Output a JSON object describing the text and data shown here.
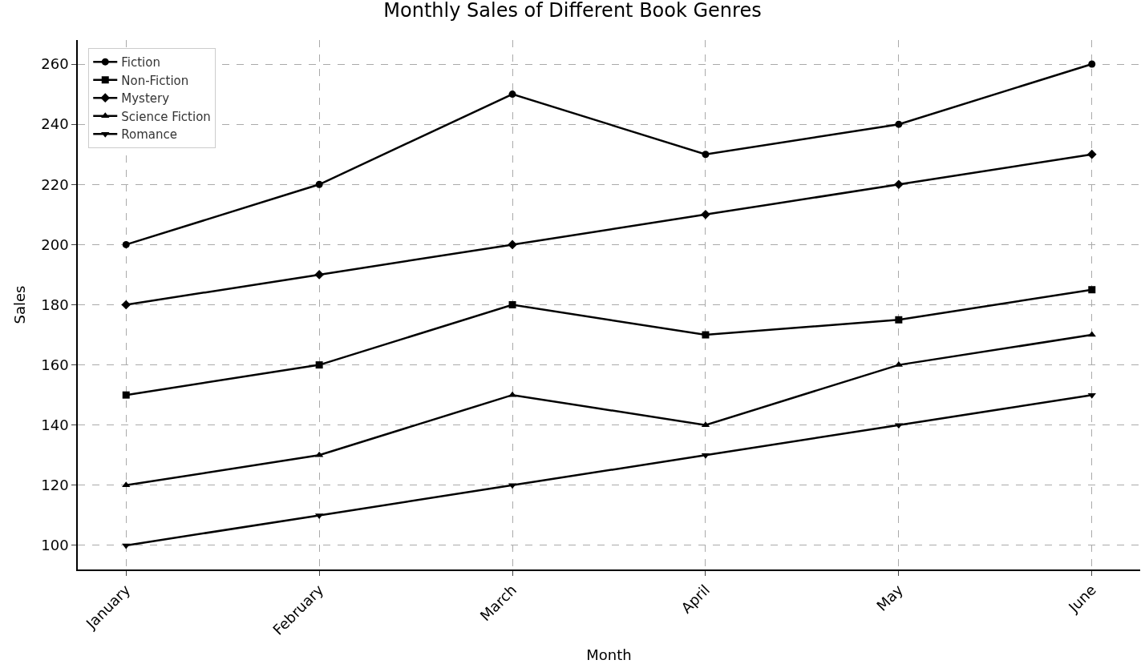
{
  "chart_data": {
    "type": "line",
    "title": "Monthly Sales of Different Book Genres",
    "xlabel": "Month",
    "ylabel": "Sales",
    "categories": [
      "January",
      "February",
      "March",
      "April",
      "May",
      "June"
    ],
    "series": [
      {
        "name": "Fiction",
        "color": "#000000",
        "marker": "circle",
        "values": [
          200,
          220,
          250,
          230,
          240,
          260
        ]
      },
      {
        "name": "Non-Fiction",
        "color": "#000000",
        "marker": "square",
        "values": [
          150,
          160,
          180,
          170,
          175,
          185
        ]
      },
      {
        "name": "Mystery",
        "color": "#000000",
        "marker": "diamond",
        "values": [
          180,
          190,
          200,
          210,
          220,
          230
        ]
      },
      {
        "name": "Science Fiction",
        "color": "#000000",
        "marker": "triangle",
        "values": [
          120,
          130,
          150,
          140,
          160,
          170
        ]
      },
      {
        "name": "Romance",
        "color": "#000000",
        "marker": "triangle-down",
        "values": [
          100,
          110,
          120,
          130,
          140,
          150
        ]
      }
    ],
    "ylim": [
      92,
      268
    ],
    "yticks": [
      100,
      120,
      140,
      160,
      180,
      200,
      220,
      240,
      260
    ],
    "grid": true,
    "legend": "top left",
    "line_style": "solid"
  }
}
